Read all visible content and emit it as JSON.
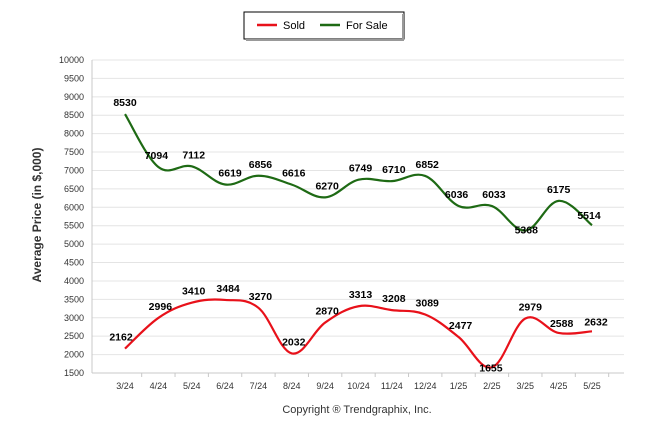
{
  "chart_data": {
    "type": "line",
    "categories": [
      "3/24",
      "4/24",
      "5/24",
      "6/24",
      "7/24",
      "8/24",
      "9/24",
      "10/24",
      "11/24",
      "12/24",
      "1/25",
      "2/25",
      "3/25",
      "4/25",
      "5/25"
    ],
    "series": [
      {
        "name": "Sold",
        "color": "#e8111a",
        "values": [
          2162,
          2996,
          3410,
          3484,
          3270,
          2032,
          2870,
          3313,
          3208,
          3089,
          2477,
          1655,
          2979,
          2588,
          2632
        ],
        "labels": [
          "2162",
          "2996",
          "3410",
          "3484",
          "3270",
          "2032",
          "2870",
          "3313",
          "3208",
          "3089",
          "2477",
          "1655",
          "2979",
          "2588",
          "2632"
        ]
      },
      {
        "name": "For Sale",
        "color": "#1e6a14",
        "values": [
          8530,
          7094,
          7112,
          6619,
          6856,
          6616,
          6270,
          6749,
          6710,
          6852,
          6036,
          6033,
          5368,
          6175,
          5514
        ],
        "labels": [
          "8530",
          "7094",
          "7112",
          "6619",
          "6856",
          "6616",
          "6270",
          "6749",
          "6710",
          "6852",
          "6036",
          "6033",
          "5368",
          "6175",
          "5514"
        ]
      }
    ],
    "ylabel": "Average Price (in $,000)",
    "ylim": [
      1500,
      10000
    ],
    "yticks": [
      1500,
      2000,
      2500,
      3000,
      3500,
      4000,
      4500,
      5000,
      5500,
      6000,
      6500,
      7000,
      7500,
      8000,
      8500,
      9000,
      9500,
      10000
    ],
    "grid": true,
    "legend_position": "top-center",
    "footer": "Copyright ® Trendgraphix, Inc."
  }
}
